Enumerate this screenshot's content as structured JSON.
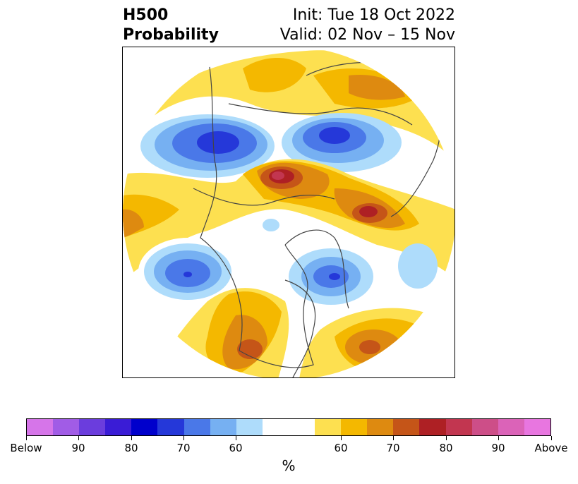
{
  "title": {
    "left_line1": "H500",
    "left_line2": "Probability",
    "init": "Init: Tue 18 Oct 2022",
    "valid": "Valid: 02 Nov – 15 Nov"
  },
  "colorbar": {
    "unit": "%",
    "colors": [
      "#d675e9",
      "#a15ce6",
      "#6b3ddd",
      "#3a1cd6",
      "#0000cc",
      "#2538d9",
      "#4a78e8",
      "#76b0f2",
      "#aedcfb",
      "#ffffff",
      "#ffffff",
      "#fde050",
      "#f4b800",
      "#de8a10",
      "#c55518",
      "#ae2024",
      "#c23650",
      "#cd4e88",
      "#db63b8",
      "#e876e0"
    ],
    "tick_labels": [
      "Below",
      "90",
      "80",
      "70",
      "60",
      "60",
      "70",
      "80",
      "90",
      "Above"
    ]
  },
  "map": {
    "colors": {
      "blue_light": "#aedcfb",
      "blue_mid": "#76b0f2",
      "blue_dark": "#4a78e8",
      "blue_deep": "#2538d9",
      "yellow": "#fde050",
      "gold": "#f4b800",
      "orange": "#de8a10",
      "burnt": "#c55518",
      "red": "#ae2024",
      "rose": "#c23650"
    }
  }
}
